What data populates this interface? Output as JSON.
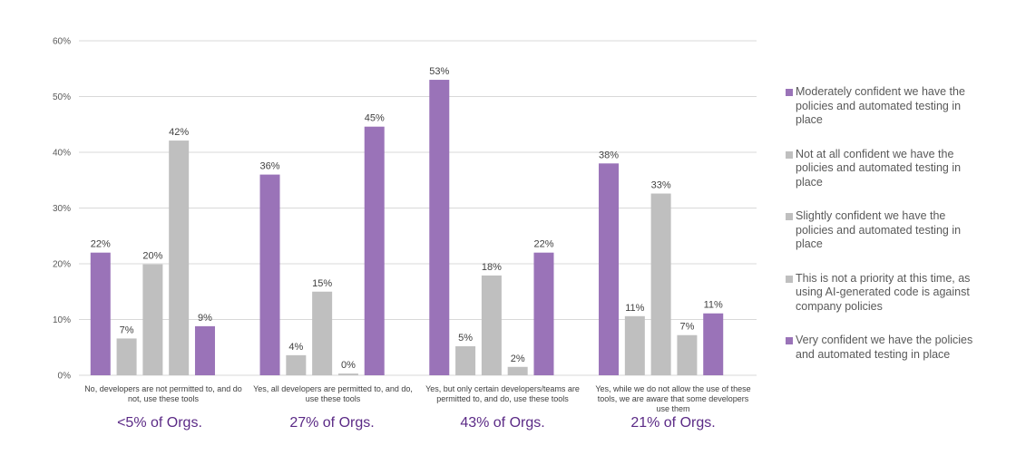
{
  "chart_data": {
    "type": "bar",
    "title": "",
    "xlabel": "",
    "ylabel": "",
    "ylim": [
      0,
      60
    ],
    "yticks": [
      "0%",
      "10%",
      "20%",
      "30%",
      "40%",
      "50%",
      "60%"
    ],
    "ytick_values": [
      0,
      10,
      20,
      30,
      40,
      50,
      60
    ],
    "grid": true,
    "legend_position": "right",
    "categories": [
      "No, developers are not permitted to, and do not, use these tools",
      "Yes, all developers are permitted to, and do, use these tools",
      "Yes, but only certain developers/teams are permitted to, and do, use these tools",
      "Yes, while we do not allow the use of these tools, we are aware that some developers use them"
    ],
    "category_footnotes": [
      "<5% of Orgs.",
      "27% of Orgs.",
      "43% of Orgs.",
      "21% of Orgs."
    ],
    "series": [
      {
        "name": "Moderately confident  we have the policies and automated testing in place",
        "color": "#9a73b8",
        "values": [
          22,
          36,
          53,
          38
        ],
        "labels": [
          "22%",
          "36%",
          "53%",
          "38%"
        ]
      },
      {
        "name": "Not at all confident  we have the policies and automated testing in place",
        "color": "#bfbfbf",
        "values": [
          6.6,
          3.6,
          5.2,
          10.6
        ],
        "labels": [
          "7%",
          "4%",
          "5%",
          "11%"
        ]
      },
      {
        "name": "Slightly confident  we have the policies and automated testing in place",
        "color": "#bfbfbf",
        "values": [
          19.9,
          15,
          17.9,
          32.6
        ],
        "labels": [
          "20%",
          "15%",
          "18%",
          "33%"
        ]
      },
      {
        "name": "This is not a priority at this time, as using AI-generated code is against company policies",
        "color": "#bfbfbf",
        "values": [
          42.1,
          0.3,
          1.5,
          7.2
        ],
        "labels": [
          "42%",
          "0%",
          "2%",
          "7%"
        ]
      },
      {
        "name": "Very confident  we have the policies and automated testing in place",
        "color": "#9a73b8",
        "values": [
          8.8,
          44.6,
          22,
          11.1
        ],
        "labels": [
          "9%",
          "45%",
          "22%",
          "11%"
        ]
      }
    ]
  },
  "colors": {
    "gridline": "#d9d9d9",
    "footnote": "#5b2a86"
  }
}
